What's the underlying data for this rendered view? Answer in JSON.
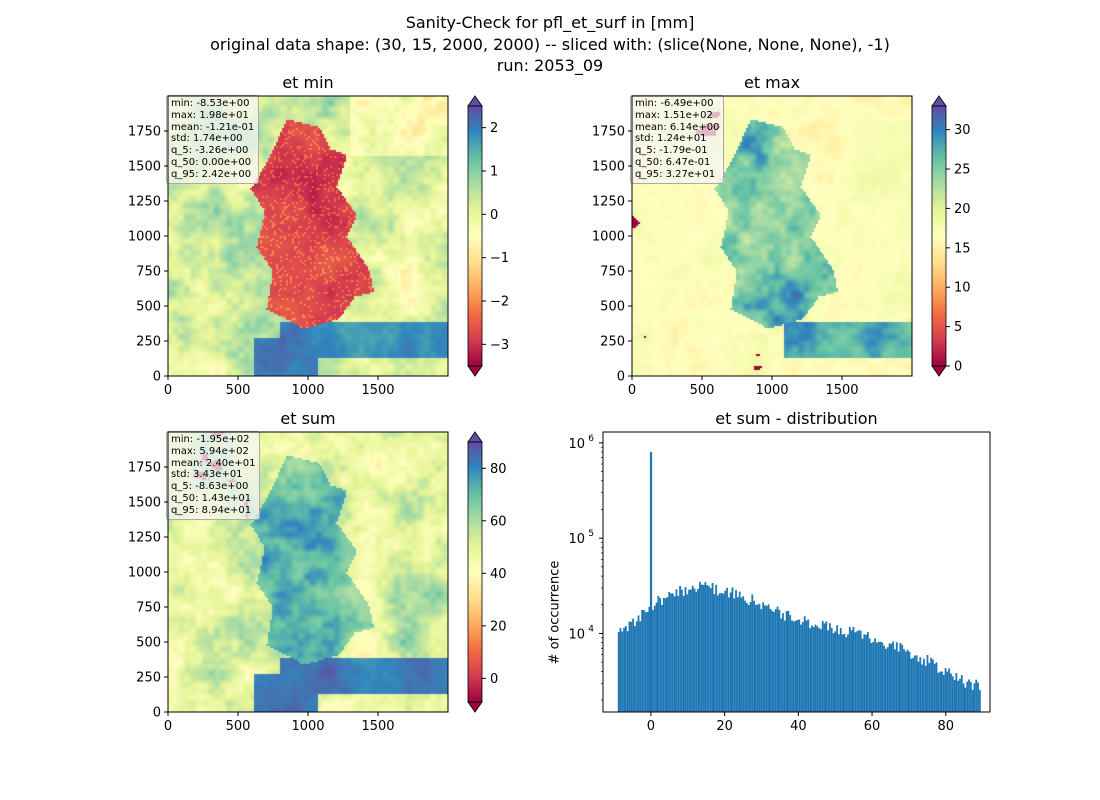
{
  "titles": {
    "line1": "Sanity-Check for pfl_et_surf in [mm]",
    "line2": "original data shape: (30, 15, 2000, 2000) -- sliced with: (slice(None, None, None), -1)",
    "line3": "run: 2053_09"
  },
  "colors": {
    "histogram": "#1f77b4",
    "cmap": "Spectral"
  },
  "chart_data": [
    {
      "type": "heatmap",
      "title": "et min",
      "x_ticks": [
        "0",
        "500",
        "1000",
        "1500"
      ],
      "y_ticks": [
        "0",
        "250",
        "500",
        "750",
        "1000",
        "1250",
        "1500",
        "1750"
      ],
      "xlim": [
        0,
        2000
      ],
      "ylim": [
        0,
        2000
      ],
      "colorbar": {
        "ticks": [
          "2",
          "1",
          "0",
          "−1",
          "−2",
          "−3"
        ],
        "range": [
          -3.5,
          2.5
        ],
        "extend": "both"
      },
      "stats": [
        "min: -8.53e+00",
        "max: 1.98e+01",
        "mean: -1.21e-01",
        "std: 1.74e+00",
        "q_5: -3.26e+00",
        "q_50: 0.00e+00",
        "q_95: 2.42e+00"
      ]
    },
    {
      "type": "heatmap",
      "title": "et max",
      "x_ticks": [
        "0",
        "500",
        "1000",
        "1500"
      ],
      "y_ticks": [
        "0",
        "250",
        "500",
        "750",
        "1000",
        "1250",
        "1500",
        "1750"
      ],
      "xlim": [
        0,
        2000
      ],
      "ylim": [
        0,
        2000
      ],
      "colorbar": {
        "ticks": [
          "30",
          "25",
          "20",
          "15",
          "10",
          "5",
          "0"
        ],
        "range": [
          0,
          33
        ],
        "extend": "both"
      },
      "stats": [
        "min: -6.49e+00",
        "max: 1.51e+02",
        "mean: 6.14e+00",
        "std: 1.24e+01",
        "q_5: -1.79e-01",
        "q_50: 6.47e-01",
        "q_95: 3.27e+01"
      ]
    },
    {
      "type": "heatmap",
      "title": "et sum",
      "x_ticks": [
        "0",
        "500",
        "1000",
        "1500"
      ],
      "y_ticks": [
        "0",
        "250",
        "500",
        "750",
        "1000",
        "1250",
        "1500",
        "1750"
      ],
      "xlim": [
        0,
        2000
      ],
      "ylim": [
        0,
        2000
      ],
      "colorbar": {
        "ticks": [
          "80",
          "60",
          "40",
          "20",
          "0"
        ],
        "range": [
          -9,
          90
        ],
        "extend": "both"
      },
      "stats": [
        "min: -1.95e+02",
        "max: 5.94e+02",
        "mean: 2.40e+01",
        "std: 3.43e+01",
        "q_5: -8.63e+00",
        "q_50: 1.43e+01",
        "q_95: 8.94e+01"
      ]
    },
    {
      "type": "bar",
      "title": "et sum - distribution",
      "ylabel": "# of occurrence",
      "x_ticks": [
        "0",
        "20",
        "40",
        "60",
        "80"
      ],
      "y_ticks": [
        "10",
        "10",
        "10"
      ],
      "y_tick_exps": [
        "4",
        "5",
        "6"
      ],
      "y_scale": "log",
      "xlim": [
        -13,
        92
      ],
      "ylim": [
        1500,
        1300000
      ],
      "bins": {
        "start": -9,
        "end": 89,
        "width": 0.49
      },
      "spike": {
        "x": 0,
        "count": 800000
      },
      "profile": [
        [
          -9,
          11000
        ],
        [
          -6,
          12500
        ],
        [
          -3,
          15000
        ],
        [
          -1,
          17000
        ],
        [
          0,
          20000
        ],
        [
          3,
          23000
        ],
        [
          6,
          26000
        ],
        [
          10,
          30000
        ],
        [
          13,
          32000
        ],
        [
          17,
          30000
        ],
        [
          22,
          27000
        ],
        [
          28,
          22000
        ],
        [
          34,
          17500
        ],
        [
          40,
          14000
        ],
        [
          46,
          12500
        ],
        [
          52,
          11000
        ],
        [
          58,
          9500
        ],
        [
          64,
          8000
        ],
        [
          70,
          6300
        ],
        [
          75,
          5200
        ],
        [
          80,
          4000
        ],
        [
          85,
          3200
        ],
        [
          89,
          2800
        ]
      ]
    }
  ]
}
